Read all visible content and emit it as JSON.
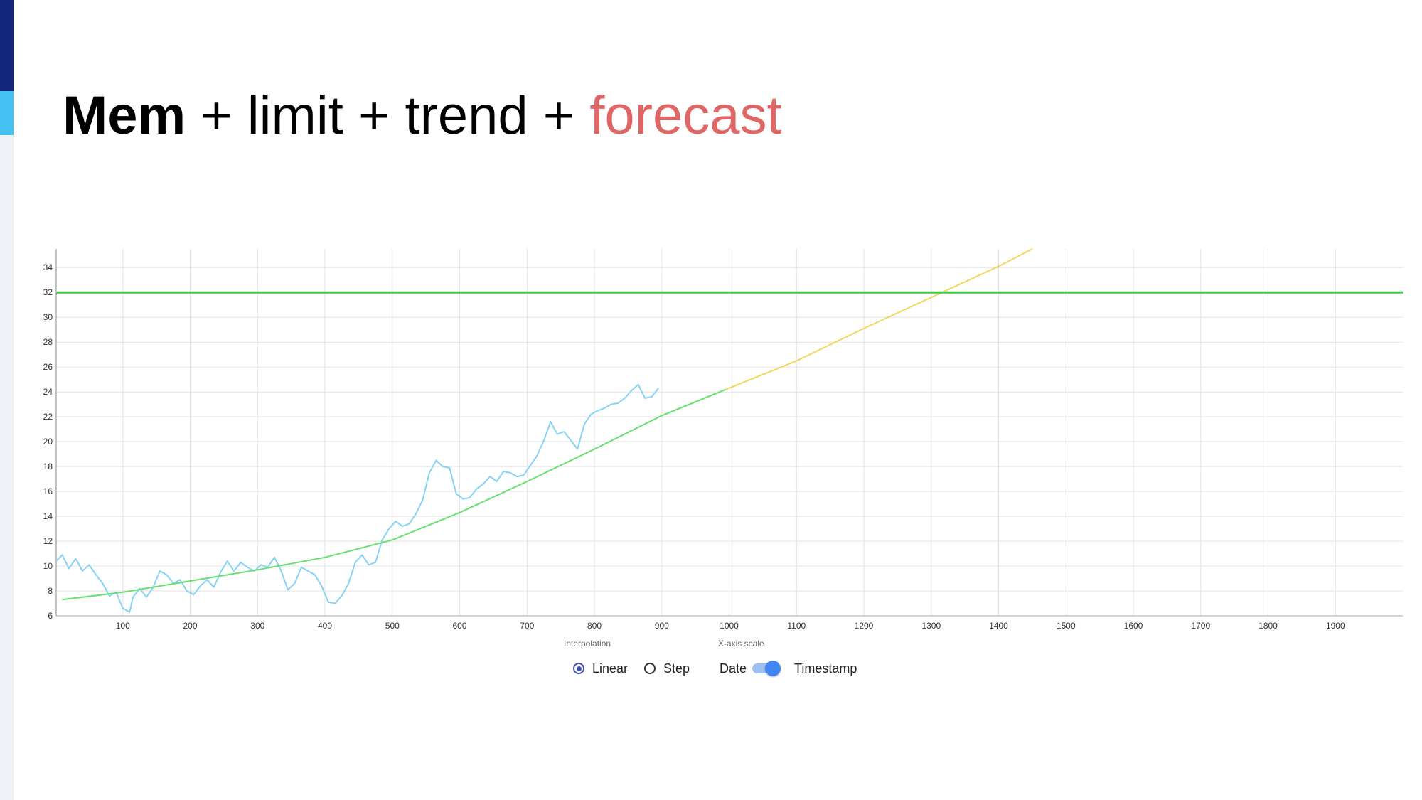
{
  "slide": {
    "title_parts": [
      "Mem",
      " + limit + trend + ",
      "forecast"
    ],
    "accent_color": "#e06666",
    "sidebar_colors": [
      "#13277a",
      "#45c2f2"
    ]
  },
  "controls": {
    "interpolation_label": "Interpolation",
    "xaxis_scale_label": "X-axis scale",
    "linear_label": "Linear",
    "step_label": "Step",
    "selected_interpolation": "Linear",
    "date_label": "Date",
    "timestamp_label": "Timestamp",
    "xaxis_scale_toggle_on": true
  },
  "chart_data": {
    "type": "line",
    "title": "",
    "xlabel": "",
    "ylabel": "",
    "xlim": [
      1,
      2000
    ],
    "ylim": [
      6,
      35.5
    ],
    "x_ticks": [
      100,
      200,
      300,
      400,
      500,
      600,
      700,
      800,
      900,
      1000,
      1100,
      1200,
      1300,
      1400,
      1500,
      1600,
      1700,
      1800,
      1900
    ],
    "y_ticks": [
      6,
      8,
      10,
      12,
      14,
      16,
      18,
      20,
      22,
      24,
      26,
      28,
      30,
      32,
      34
    ],
    "grid": true,
    "legend": "none",
    "series": [
      {
        "color": "#87d3f3",
        "points": [
          [
            1,
            10.4
          ],
          [
            10,
            10.9
          ],
          [
            20,
            9.8
          ],
          [
            30,
            10.6
          ],
          [
            40,
            9.6
          ],
          [
            50,
            10.1
          ],
          [
            60,
            9.3
          ],
          [
            70,
            8.6
          ],
          [
            80,
            7.6
          ],
          [
            90,
            7.9
          ],
          [
            100,
            6.6
          ],
          [
            110,
            6.3
          ],
          [
            115,
            7.5
          ],
          [
            125,
            8.2
          ],
          [
            135,
            7.5
          ],
          [
            145,
            8.3
          ],
          [
            155,
            9.6
          ],
          [
            165,
            9.3
          ],
          [
            175,
            8.6
          ],
          [
            185,
            8.9
          ],
          [
            195,
            8.0
          ],
          [
            205,
            7.7
          ],
          [
            215,
            8.4
          ],
          [
            225,
            8.9
          ],
          [
            235,
            8.3
          ],
          [
            245,
            9.5
          ],
          [
            255,
            10.4
          ],
          [
            265,
            9.6
          ],
          [
            275,
            10.3
          ],
          [
            285,
            9.9
          ],
          [
            295,
            9.6
          ],
          [
            305,
            10.1
          ],
          [
            315,
            9.9
          ],
          [
            325,
            10.7
          ],
          [
            335,
            9.6
          ],
          [
            345,
            8.1
          ],
          [
            355,
            8.6
          ],
          [
            365,
            9.9
          ],
          [
            375,
            9.6
          ],
          [
            385,
            9.3
          ],
          [
            395,
            8.4
          ],
          [
            405,
            7.1
          ],
          [
            415,
            7.0
          ],
          [
            425,
            7.6
          ],
          [
            435,
            8.6
          ],
          [
            445,
            10.3
          ],
          [
            455,
            10.9
          ],
          [
            465,
            10.1
          ],
          [
            475,
            10.3
          ],
          [
            485,
            12.1
          ],
          [
            495,
            13.0
          ],
          [
            505,
            13.6
          ],
          [
            515,
            13.2
          ],
          [
            525,
            13.4
          ],
          [
            535,
            14.2
          ],
          [
            545,
            15.3
          ],
          [
            555,
            17.5
          ],
          [
            565,
            18.5
          ],
          [
            575,
            18.0
          ],
          [
            585,
            17.9
          ],
          [
            595,
            15.8
          ],
          [
            605,
            15.4
          ],
          [
            615,
            15.5
          ],
          [
            625,
            16.2
          ],
          [
            635,
            16.6
          ],
          [
            645,
            17.2
          ],
          [
            655,
            16.8
          ],
          [
            665,
            17.6
          ],
          [
            675,
            17.5
          ],
          [
            685,
            17.2
          ],
          [
            695,
            17.3
          ],
          [
            705,
            18.1
          ],
          [
            715,
            18.9
          ],
          [
            725,
            20.1
          ],
          [
            735,
            21.6
          ],
          [
            745,
            20.6
          ],
          [
            755,
            20.8
          ],
          [
            765,
            20.1
          ],
          [
            775,
            19.4
          ],
          [
            785,
            21.4
          ],
          [
            795,
            22.2
          ],
          [
            805,
            22.5
          ],
          [
            815,
            22.7
          ],
          [
            825,
            23.0
          ],
          [
            835,
            23.1
          ],
          [
            845,
            23.5
          ],
          [
            855,
            24.1
          ],
          [
            865,
            24.6
          ],
          [
            875,
            23.5
          ],
          [
            885,
            23.6
          ],
          [
            895,
            24.3
          ]
        ]
      },
      {
        "color": "#66e06e",
        "points": [
          [
            10,
            7.3
          ],
          [
            100,
            7.9
          ],
          [
            200,
            8.8
          ],
          [
            300,
            9.7
          ],
          [
            400,
            10.7
          ],
          [
            500,
            12.1
          ],
          [
            600,
            14.3
          ],
          [
            700,
            16.8
          ],
          [
            800,
            19.4
          ],
          [
            900,
            22.1
          ],
          [
            995,
            24.2
          ]
        ]
      },
      {
        "color": "#f0d85a",
        "points": [
          [
            995,
            24.2
          ],
          [
            1100,
            26.5
          ],
          [
            1200,
            29.1
          ],
          [
            1300,
            31.6
          ],
          [
            1400,
            34.1
          ],
          [
            1450,
            35.5
          ]
        ]
      },
      {
        "color": "#3fcc4a",
        "points": [
          [
            1,
            32
          ],
          [
            2000,
            32
          ]
        ]
      }
    ]
  }
}
